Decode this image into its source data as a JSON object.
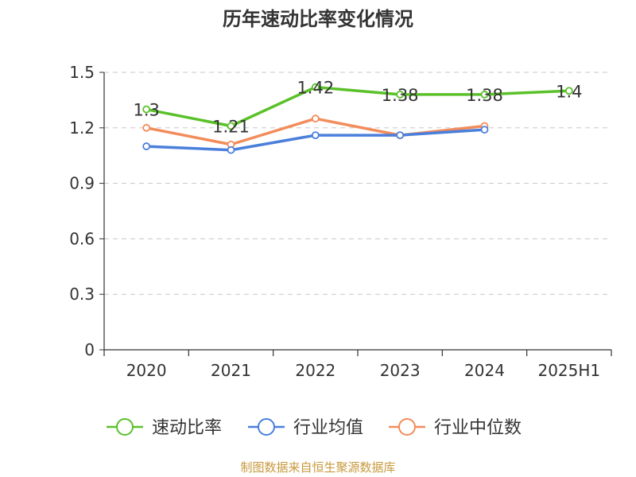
{
  "chart_data": {
    "type": "line",
    "title": "历年速动比率变化情况",
    "categories": [
      "2020",
      "2021",
      "2022",
      "2023",
      "2024",
      "2025H1"
    ],
    "yticks": [
      "0",
      "0.3",
      "0.6",
      "0.9",
      "1.2",
      "1.5"
    ],
    "ylim": [
      0,
      1.5
    ],
    "grid": true,
    "legend_position": "bottom",
    "series": [
      {
        "name": "速动比率",
        "color": "#5ac12a",
        "values": [
          1.3,
          1.21,
          1.42,
          1.38,
          1.38,
          1.4
        ],
        "labels": [
          "1.3",
          "1.21",
          "1.42",
          "1.38",
          "1.38",
          "1.4"
        ]
      },
      {
        "name": "行业均值",
        "color": "#4a7fdb",
        "values": [
          1.1,
          1.08,
          1.16,
          1.16,
          1.19,
          null
        ]
      },
      {
        "name": "行业中位数",
        "color": "#f28c5b",
        "values": [
          1.2,
          1.11,
          1.25,
          1.16,
          1.21,
          null
        ]
      }
    ]
  },
  "footer": "制图数据来自恒生聚源数据库"
}
